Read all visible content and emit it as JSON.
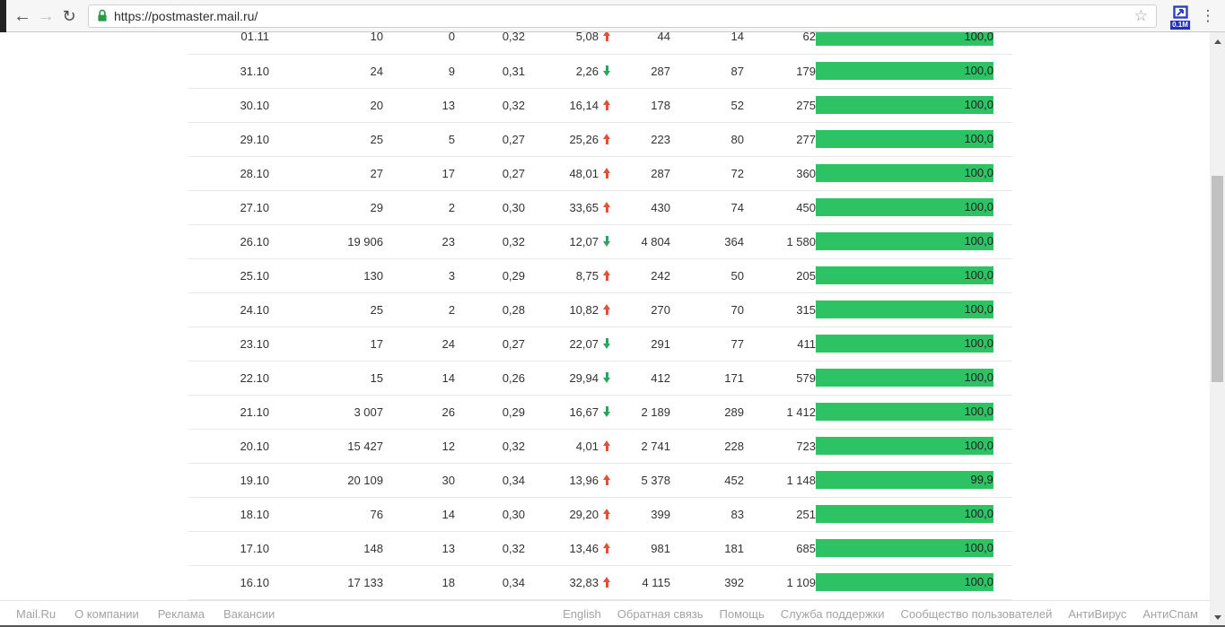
{
  "browser": {
    "url": "https://postmaster.mail.ru/",
    "extension_badge": "0.1M"
  },
  "table": {
    "rows": [
      {
        "date": "01.11",
        "values": [
          "10",
          "0",
          "0,32"
        ],
        "trend": {
          "value": "5,08",
          "direction": "up"
        },
        "values2": [
          "44",
          "14",
          "62"
        ],
        "bar": {
          "label": "100,0",
          "percent": 100
        }
      },
      {
        "date": "31.10",
        "values": [
          "24",
          "9",
          "0,31"
        ],
        "trend": {
          "value": "2,26",
          "direction": "down"
        },
        "values2": [
          "287",
          "87",
          "179"
        ],
        "bar": {
          "label": "100,0",
          "percent": 100
        }
      },
      {
        "date": "30.10",
        "values": [
          "20",
          "13",
          "0,32"
        ],
        "trend": {
          "value": "16,14",
          "direction": "up"
        },
        "values2": [
          "178",
          "52",
          "275"
        ],
        "bar": {
          "label": "100,0",
          "percent": 100
        }
      },
      {
        "date": "29.10",
        "values": [
          "25",
          "5",
          "0,27"
        ],
        "trend": {
          "value": "25,26",
          "direction": "up"
        },
        "values2": [
          "223",
          "80",
          "277"
        ],
        "bar": {
          "label": "100,0",
          "percent": 100
        }
      },
      {
        "date": "28.10",
        "values": [
          "27",
          "17",
          "0,27"
        ],
        "trend": {
          "value": "48,01",
          "direction": "up"
        },
        "values2": [
          "287",
          "72",
          "360"
        ],
        "bar": {
          "label": "100,0",
          "percent": 100
        }
      },
      {
        "date": "27.10",
        "values": [
          "29",
          "2",
          "0,30"
        ],
        "trend": {
          "value": "33,65",
          "direction": "up"
        },
        "values2": [
          "430",
          "74",
          "450"
        ],
        "bar": {
          "label": "100,0",
          "percent": 100
        }
      },
      {
        "date": "26.10",
        "values": [
          "19 906",
          "23",
          "0,32"
        ],
        "trend": {
          "value": "12,07",
          "direction": "down"
        },
        "values2": [
          "4 804",
          "364",
          "1 580"
        ],
        "bar": {
          "label": "100,0",
          "percent": 100
        }
      },
      {
        "date": "25.10",
        "values": [
          "130",
          "3",
          "0,29"
        ],
        "trend": {
          "value": "8,75",
          "direction": "up"
        },
        "values2": [
          "242",
          "50",
          "205"
        ],
        "bar": {
          "label": "100,0",
          "percent": 100
        }
      },
      {
        "date": "24.10",
        "values": [
          "25",
          "2",
          "0,28"
        ],
        "trend": {
          "value": "10,82",
          "direction": "up"
        },
        "values2": [
          "270",
          "70",
          "315"
        ],
        "bar": {
          "label": "100,0",
          "percent": 100
        }
      },
      {
        "date": "23.10",
        "values": [
          "17",
          "24",
          "0,27"
        ],
        "trend": {
          "value": "22,07",
          "direction": "down"
        },
        "values2": [
          "291",
          "77",
          "411"
        ],
        "bar": {
          "label": "100,0",
          "percent": 100
        }
      },
      {
        "date": "22.10",
        "values": [
          "15",
          "14",
          "0,26"
        ],
        "trend": {
          "value": "29,94",
          "direction": "down"
        },
        "values2": [
          "412",
          "171",
          "579"
        ],
        "bar": {
          "label": "100,0",
          "percent": 100
        }
      },
      {
        "date": "21.10",
        "values": [
          "3 007",
          "26",
          "0,29"
        ],
        "trend": {
          "value": "16,67",
          "direction": "down"
        },
        "values2": [
          "2 189",
          "289",
          "1 412"
        ],
        "bar": {
          "label": "100,0",
          "percent": 100
        }
      },
      {
        "date": "20.10",
        "values": [
          "15 427",
          "12",
          "0,32"
        ],
        "trend": {
          "value": "4,01",
          "direction": "up"
        },
        "values2": [
          "2 741",
          "228",
          "723"
        ],
        "bar": {
          "label": "100,0",
          "percent": 100
        }
      },
      {
        "date": "19.10",
        "values": [
          "20 109",
          "30",
          "0,34"
        ],
        "trend": {
          "value": "13,96",
          "direction": "up"
        },
        "values2": [
          "5 378",
          "452",
          "1 148"
        ],
        "bar": {
          "label": "99,9",
          "percent": 99.9
        }
      },
      {
        "date": "18.10",
        "values": [
          "76",
          "14",
          "0,30"
        ],
        "trend": {
          "value": "29,20",
          "direction": "up"
        },
        "values2": [
          "399",
          "83",
          "251"
        ],
        "bar": {
          "label": "100,0",
          "percent": 100
        }
      },
      {
        "date": "17.10",
        "values": [
          "148",
          "13",
          "0,32"
        ],
        "trend": {
          "value": "13,46",
          "direction": "up"
        },
        "values2": [
          "981",
          "181",
          "685"
        ],
        "bar": {
          "label": "100,0",
          "percent": 100
        }
      },
      {
        "date": "16.10",
        "values": [
          "17 133",
          "18",
          "0,34"
        ],
        "trend": {
          "value": "32,83",
          "direction": "up"
        },
        "values2": [
          "4 115",
          "392",
          "1 109"
        ],
        "bar": {
          "label": "100,0",
          "percent": 100
        }
      }
    ]
  },
  "footer": {
    "left_links": [
      "Mail.Ru",
      "О компании",
      "Реклама",
      "Вакансии"
    ],
    "right_links": [
      "English",
      "Обратная связь",
      "Помощь",
      "Служба поддержки",
      "Сообщество пользователей",
      "АнтиВирус",
      "АнтиСпам"
    ]
  },
  "colors": {
    "bar_green": "#2dc364",
    "trend_up_red": "#e0513b",
    "trend_down_green": "#2ba55e",
    "padlock_green": "#2a9a47",
    "extension_blue": "#2330b5"
  }
}
